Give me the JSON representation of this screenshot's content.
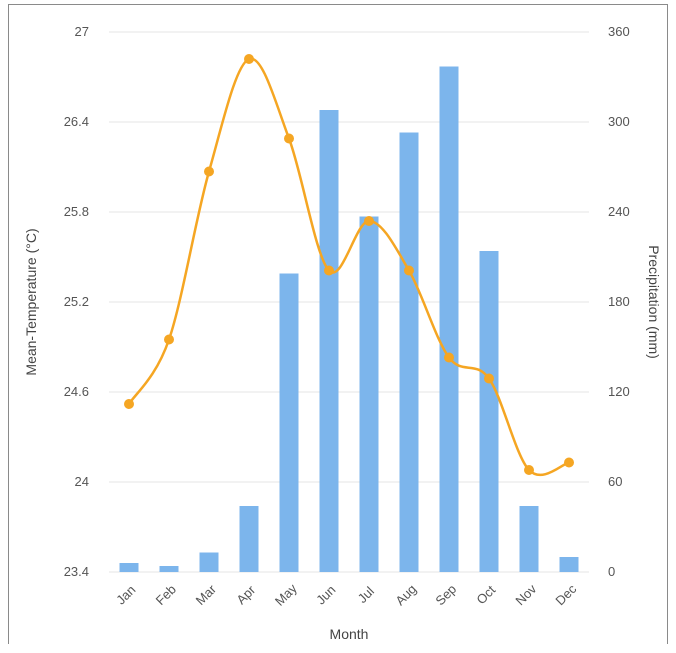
{
  "chart_data": {
    "type": "bar+line",
    "categories": [
      "Jan",
      "Feb",
      "Mar",
      "Apr",
      "May",
      "Jun",
      "Jul",
      "Aug",
      "Sep",
      "Oct",
      "Nov",
      "Dec"
    ],
    "xlabel": "Month",
    "ylabel_left": "Mean-Temperature (°C)",
    "ylabel_right": "Precipitation (mm)",
    "ylim_left": [
      23.4,
      27
    ],
    "yticks_left": [
      "23.4",
      "24",
      "24.6",
      "25.2",
      "25.8",
      "26.4",
      "27"
    ],
    "ylim_right": [
      0,
      360
    ],
    "yticks_right": [
      "0",
      "60",
      "120",
      "180",
      "240",
      "300",
      "360"
    ],
    "grid": true,
    "series": [
      {
        "kind": "bar",
        "axis": "right",
        "color": "#7cb5ec",
        "values": [
          6,
          4,
          13,
          44,
          199,
          308,
          237,
          293,
          337,
          214,
          44,
          10
        ]
      },
      {
        "kind": "line",
        "axis": "left",
        "color": "#f5a623",
        "values": [
          24.52,
          24.95,
          26.07,
          26.82,
          26.29,
          25.41,
          25.74,
          25.41,
          24.83,
          24.69,
          24.08,
          24.13
        ]
      }
    ]
  }
}
